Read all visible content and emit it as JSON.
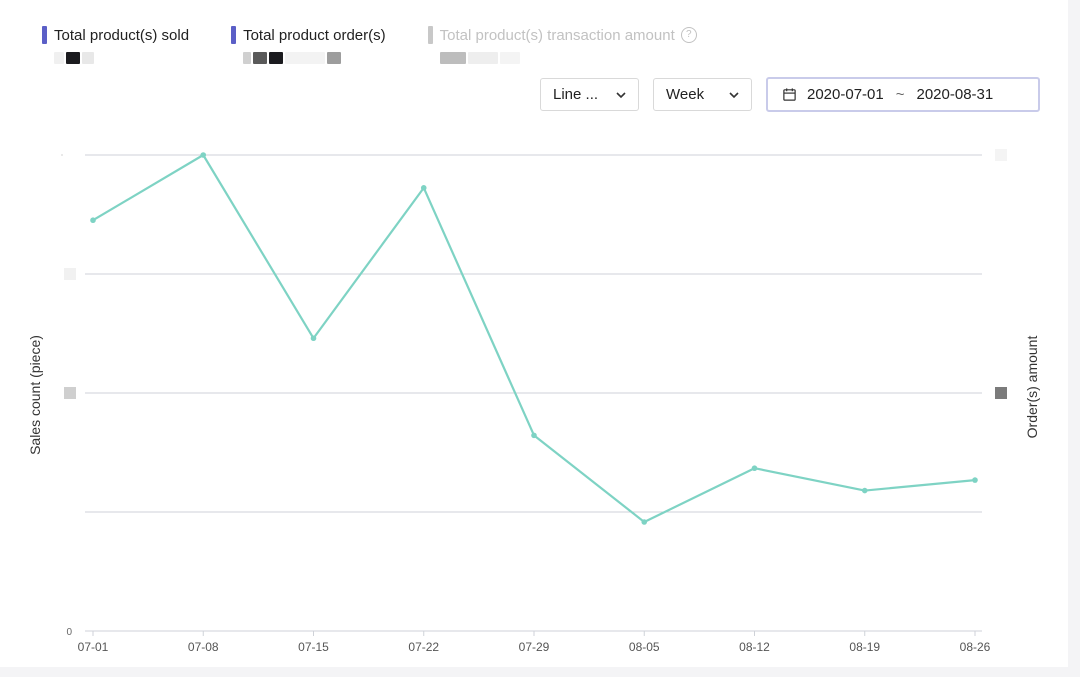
{
  "legend": [
    {
      "label": "Total product(s) sold",
      "color": "#5b5fc7",
      "muted": false
    },
    {
      "label": "Total product order(s)",
      "color": "#5b5fc7",
      "muted": false
    },
    {
      "label": "Total product(s) transaction amount",
      "color": "#c8c8c8",
      "muted": true
    }
  ],
  "controls": {
    "chart_type_label": "Line ...",
    "period_label": "Week",
    "date_start": "2020-07-01",
    "date_separator": "~",
    "date_end": "2020-08-31"
  },
  "chart_data": {
    "type": "line",
    "x": [
      "07-01",
      "07-08",
      "07-15",
      "07-22",
      "07-29",
      "08-05",
      "08-12",
      "08-19",
      "08-26"
    ],
    "series": [
      {
        "name": "Total product(s) sold",
        "color": "#7ed3c4",
        "values": [
          86.3,
          100,
          61.5,
          93.1,
          41.1,
          22.9,
          34.2,
          29.5,
          31.7
        ]
      }
    ],
    "ylim": [
      0,
      100
    ],
    "y_tick_count": 4,
    "ylabel": "Sales count (piece)",
    "ylabel_right": "Order(s) amount",
    "y_zero_label": "0",
    "grid": true,
    "legend_position": "top-left"
  }
}
